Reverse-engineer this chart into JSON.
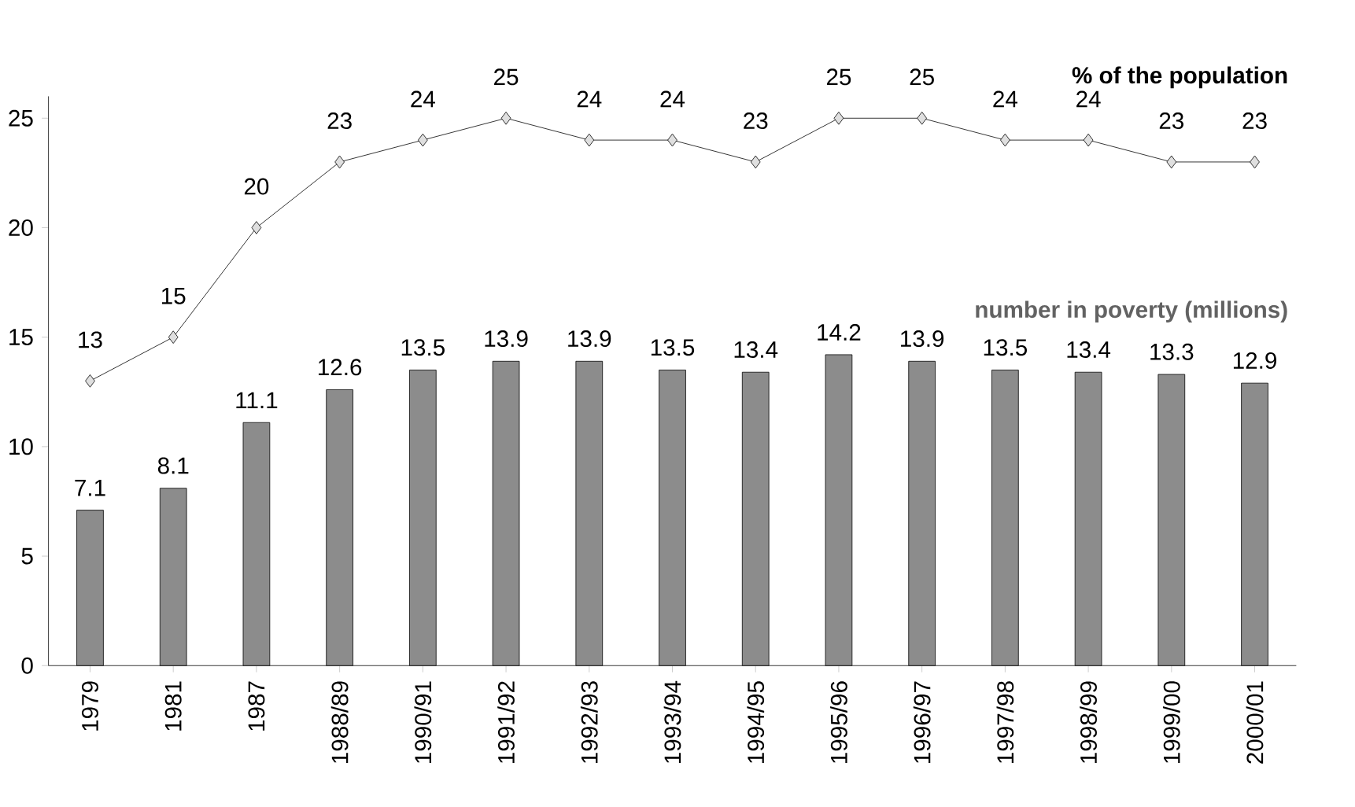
{
  "chart_data": {
    "type": "bar",
    "categories": [
      "1979",
      "1981",
      "1987",
      "1988/89",
      "1990/91",
      "1991/92",
      "1992/93",
      "1993/94",
      "1994/95",
      "1995/96",
      "1996/97",
      "1997/98",
      "1998/99",
      "1999/00",
      "2000/01"
    ],
    "series": [
      {
        "name": "number in poverty (millions)",
        "color": "#8c8c8c",
        "values": [
          7.1,
          8.1,
          11.1,
          12.6,
          13.5,
          13.9,
          13.9,
          13.5,
          13.4,
          14.2,
          13.9,
          13.5,
          13.4,
          13.3,
          12.9
        ]
      },
      {
        "name": "% of the population",
        "type": "line",
        "color": "#000000",
        "values": [
          13,
          15,
          20,
          23,
          24,
          25,
          24,
          24,
          23,
          25,
          25,
          24,
          24,
          23,
          23
        ]
      }
    ],
    "ylim": [
      0,
      26
    ],
    "yticks": [
      0,
      5,
      10,
      15,
      20,
      25
    ],
    "data_labels": true,
    "grid": false,
    "marker": "diamond",
    "line_style": "solid"
  }
}
